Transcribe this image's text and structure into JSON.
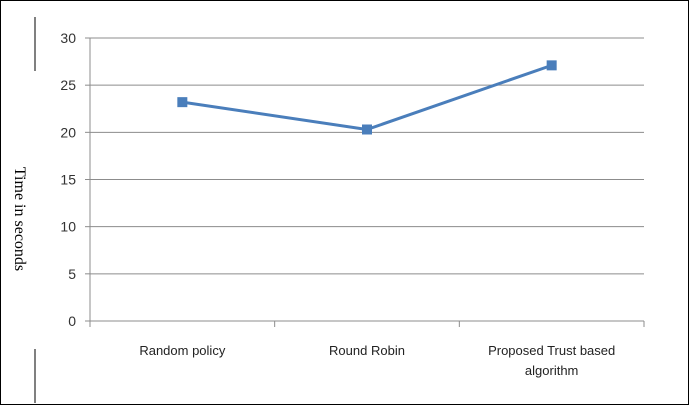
{
  "chart_data": {
    "type": "line",
    "title": "",
    "xlabel": "",
    "ylabel": "Time in seconds",
    "categories": [
      "Random policy",
      "Round Robin",
      "Proposed Trust based algorithm"
    ],
    "category_lines": [
      [
        "Random policy"
      ],
      [
        "Round Robin"
      ],
      [
        "Proposed Trust based",
        "algorithm"
      ]
    ],
    "series": [
      {
        "values": [
          23.2,
          20.3,
          27.1
        ],
        "color": "#4a7ebb"
      }
    ],
    "ylim": [
      0,
      30
    ],
    "yticks": [
      "0",
      "5",
      "10",
      "15",
      "20",
      "25",
      "30"
    ],
    "grid": true,
    "legend": "none"
  }
}
